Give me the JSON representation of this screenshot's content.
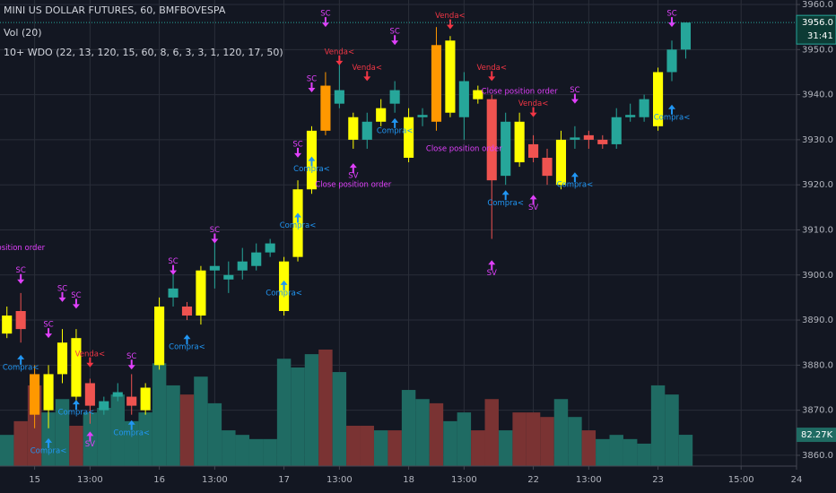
{
  "chart_data": {
    "type": "candlestick",
    "title": "MINI US DOLLAR FUTURES, 60, BMFBOVESPA",
    "subtitles": [
      "Vol (20)",
      "10+ WDO (22, 13, 120, 15, 60, 8, 6, 3, 3, 1, 120, 17, 50)"
    ],
    "x": [
      0,
      1,
      2,
      3,
      4,
      5,
      6,
      7,
      8,
      9,
      10,
      11,
      12,
      13,
      14,
      15,
      16,
      17,
      18,
      19,
      20,
      21,
      22,
      23,
      24,
      25,
      26,
      27,
      28,
      29,
      30,
      31,
      32,
      33,
      34,
      35,
      36,
      37,
      38,
      39,
      40,
      41,
      42,
      43,
      44,
      45,
      46,
      47,
      48,
      49
    ],
    "open": [
      3887,
      3892,
      3878,
      3870,
      3878,
      3873,
      3876,
      3870,
      3873,
      3873,
      3870,
      3880,
      3895,
      3893,
      3891,
      3901,
      3899,
      3901,
      3902,
      3905,
      3892,
      3904,
      3919,
      3942,
      3938,
      3935,
      3930,
      3934,
      3938,
      3935,
      3935,
      3951,
      3936,
      3935,
      3941,
      3939,
      3922,
      3934,
      3929,
      3926,
      3930,
      3930,
      3931,
      3930,
      3929,
      3935,
      3935,
      3933,
      3945,
      3950
    ],
    "high": [
      3893,
      3896,
      3880,
      3880,
      3888,
      3888,
      3877,
      3873,
      3876,
      3878,
      3876,
      3895,
      3902,
      3894,
      3902,
      3908,
      3903,
      3906,
      3907,
      3908,
      3904,
      3921,
      3933,
      3945,
      3948,
      3936,
      3936,
      3939,
      3943,
      3937,
      3937,
      3955,
      3953,
      3945,
      3942,
      3940,
      3936,
      3936,
      3931,
      3928,
      3932,
      3933,
      3932,
      3931,
      3937,
      3938,
      3940,
      3946,
      3952,
      3956
    ],
    "low": [
      3886,
      3885,
      3866,
      3866,
      3876,
      3871,
      3867,
      3869,
      3872,
      3869,
      3869,
      3879,
      3893,
      3890,
      3889,
      3897,
      3896,
      3899,
      3901,
      3904,
      3891,
      3903,
      3918,
      3931,
      3937,
      3928,
      3928,
      3933,
      3936,
      3925,
      3933,
      3932,
      3935,
      3930,
      3938,
      3908,
      3920,
      3924,
      3925,
      3920,
      3919,
      3928,
      3928,
      3928,
      3928,
      3934,
      3934,
      3932,
      3943,
      3948
    ],
    "close": [
      3891,
      3888,
      3869,
      3878,
      3885,
      3886,
      3871,
      3872,
      3874,
      3871,
      3875,
      3893,
      3897,
      3891,
      3901,
      3902,
      3900,
      3903,
      3905,
      3907,
      3903,
      3919,
      3932,
      3932,
      3941,
      3930,
      3934,
      3937,
      3941,
      3926,
      3935.5,
      3934,
      3952,
      3943,
      3939,
      3921,
      3934,
      3925,
      3926,
      3922,
      3920,
      3930.5,
      3930,
      3929,
      3935,
      3935.5,
      3939,
      3945,
      3950,
      3956
    ],
    "colors": [
      "#ffff00",
      "#ef5350",
      "#ff9800",
      "#ffff00",
      "#ffff00",
      "#ffff00",
      "#ef5350",
      "#26a69a",
      "#26a69a",
      "#ef5350",
      "#ffff00",
      "#ffff00",
      "#26a69a",
      "#ef5350",
      "#ffff00",
      "#26a69a",
      "#26a69a",
      "#26a69a",
      "#26a69a",
      "#26a69a",
      "#ffff00",
      "#ffff00",
      "#ffff00",
      "#ff9800",
      "#26a69a",
      "#ffff00",
      "#26a69a",
      "#ffff00",
      "#26a69a",
      "#ffff00",
      "#26a69a",
      "#ff9800",
      "#ffff00",
      "#26a69a",
      "#ffff00",
      "#ef5350",
      "#26a69a",
      "#ffff00",
      "#ef5350",
      "#ef5350",
      "#ffff00",
      "#26a69a",
      "#ef5350",
      "#ef5350",
      "#26a69a",
      "#26a69a",
      "#26a69a",
      "#ffff00",
      "#26a69a",
      "#26a69a"
    ],
    "volume": {
      "values": [
        82,
        118,
        212,
        141,
        176,
        106,
        141,
        153,
        188,
        118,
        141,
        270,
        212,
        188,
        235,
        165,
        94,
        82,
        71,
        71,
        282,
        259,
        294,
        306,
        247,
        106,
        106,
        94,
        94,
        200,
        176,
        165,
        118,
        141,
        94,
        176,
        94,
        141,
        141,
        129,
        176,
        129,
        94,
        71,
        82,
        71,
        59,
        212,
        188,
        82.27
      ],
      "colors": [
        "#1f6b63",
        "#7a3333",
        "#7a3333",
        "#1f6b63",
        "#1f6b63",
        "#7a3333",
        "#1f6b63",
        "#1f6b63",
        "#1f6b63",
        "#1f6b63",
        "#1f6b63",
        "#1f6b63",
        "#1f6b63",
        "#7a3333",
        "#1f6b63",
        "#1f6b63",
        "#1f6b63",
        "#1f6b63",
        "#1f6b63",
        "#1f6b63",
        "#1f6b63",
        "#1f6b63",
        "#1f6b63",
        "#7a3333",
        "#1f6b63",
        "#7a3333",
        "#7a3333",
        "#1f6b63",
        "#7a3333",
        "#1f6b63",
        "#1f6b63",
        "#7a3333",
        "#1f6b63",
        "#1f6b63",
        "#7a3333",
        "#7a3333",
        "#1f6b63",
        "#7a3333",
        "#7a3333",
        "#7a3333",
        "#1f6b63",
        "#1f6b63",
        "#7a3333",
        "#1f6b63",
        "#1f6b63",
        "#1f6b63",
        "#1f6b63",
        "#1f6b63",
        "#1f6b63",
        "#1f6b63"
      ],
      "ylim": [
        0,
        1224
      ],
      "last_label": "82.27K"
    },
    "xlim": [
      -0.5,
      57
    ],
    "xticks": [
      {
        "value": 2,
        "label": "15"
      },
      {
        "value": 6,
        "label": "13:00"
      },
      {
        "value": 11,
        "label": "16"
      },
      {
        "value": 15,
        "label": "13:00"
      },
      {
        "value": 20,
        "label": "17"
      },
      {
        "value": 24,
        "label": "13:00"
      },
      {
        "value": 29,
        "label": "18"
      },
      {
        "value": 33,
        "label": "13:00"
      },
      {
        "value": 38,
        "label": "22"
      },
      {
        "value": 42,
        "label": "13:00"
      },
      {
        "value": 47,
        "label": "23"
      },
      {
        "value": 53,
        "label": "15:00"
      },
      {
        "value": 57,
        "label": "24"
      }
    ],
    "ylim": [
      3857.6,
      3961
    ],
    "yticks": [
      {
        "value": 3860,
        "label": "3860.0"
      },
      {
        "value": 3870,
        "label": "3870.0"
      },
      {
        "value": 3880,
        "label": "3880.0"
      },
      {
        "value": 3890,
        "label": "3890.0"
      },
      {
        "value": 3900,
        "label": "3900.0"
      },
      {
        "value": 3910,
        "label": "3910.0"
      },
      {
        "value": 3920,
        "label": "3920.0"
      },
      {
        "value": 3930,
        "label": "3930.0"
      },
      {
        "value": 3940,
        "label": "3940.0"
      },
      {
        "value": 3950,
        "label": "3950.0"
      },
      {
        "value": 3960,
        "label": "3960.0"
      }
    ],
    "grid": true,
    "last_price": {
      "value": 3956,
      "label": "3956.0"
    },
    "countdown": "31:41",
    "annotations": [
      {
        "text": "Close position order",
        "x": 0,
        "y": 3906,
        "color": "#e040fb",
        "dir": "none"
      },
      {
        "text": "SC",
        "x": 1,
        "y": 3901,
        "color": "#e040fb",
        "dir": "down"
      },
      {
        "text": "SC",
        "x": 3,
        "y": 3889,
        "color": "#e040fb",
        "dir": "down"
      },
      {
        "text": "SC",
        "x": 4,
        "y": 3897,
        "color": "#e040fb",
        "dir": "down"
      },
      {
        "text": "SC",
        "x": 5,
        "y": 3895.5,
        "color": "#e040fb",
        "dir": "down"
      },
      {
        "text": "SC",
        "x": 9,
        "y": 3882,
        "color": "#e040fb",
        "dir": "down"
      },
      {
        "text": "SC",
        "x": 12,
        "y": 3903,
        "color": "#e040fb",
        "dir": "down"
      },
      {
        "text": "SC",
        "x": 15,
        "y": 3910,
        "color": "#e040fb",
        "dir": "down"
      },
      {
        "text": "SC",
        "x": 21,
        "y": 3929,
        "color": "#e040fb",
        "dir": "down"
      },
      {
        "text": "SC",
        "x": 22,
        "y": 3943.5,
        "color": "#e040fb",
        "dir": "down"
      },
      {
        "text": "SC",
        "x": 23,
        "y": 3958,
        "color": "#e040fb",
        "dir": "down"
      },
      {
        "text": "SC",
        "x": 28,
        "y": 3954,
        "color": "#e040fb",
        "dir": "down"
      },
      {
        "text": "SC",
        "x": 41,
        "y": 3941,
        "color": "#e040fb",
        "dir": "down"
      },
      {
        "text": "SC",
        "x": 48,
        "y": 3958,
        "color": "#e040fb",
        "dir": "down"
      },
      {
        "text": "Compra<",
        "x": 1,
        "y": 3879.5,
        "color": "#2196f3",
        "dir": "up"
      },
      {
        "text": "Compra<",
        "x": 3,
        "y": 3861,
        "color": "#2196f3",
        "dir": "up"
      },
      {
        "text": "Compra<",
        "x": 5,
        "y": 3869.5,
        "color": "#2196f3",
        "dir": "up"
      },
      {
        "text": "Compra<",
        "x": 9,
        "y": 3865,
        "color": "#2196f3",
        "dir": "up"
      },
      {
        "text": "Compra<",
        "x": 13,
        "y": 3884,
        "color": "#2196f3",
        "dir": "up"
      },
      {
        "text": "Compra<",
        "x": 20,
        "y": 3896,
        "color": "#2196f3",
        "dir": "up"
      },
      {
        "text": "Compra<",
        "x": 21,
        "y": 3911,
        "color": "#2196f3",
        "dir": "up"
      },
      {
        "text": "Compra<",
        "x": 22,
        "y": 3923.5,
        "color": "#2196f3",
        "dir": "up"
      },
      {
        "text": "Compra<",
        "x": 28,
        "y": 3932,
        "color": "#2196f3",
        "dir": "up"
      },
      {
        "text": "Compra<",
        "x": 36,
        "y": 3916,
        "color": "#2196f3",
        "dir": "up"
      },
      {
        "text": "Compra<",
        "x": 41,
        "y": 3920,
        "color": "#2196f3",
        "dir": "up"
      },
      {
        "text": "Compra<",
        "x": 48,
        "y": 3935,
        "color": "#2196f3",
        "dir": "up"
      },
      {
        "text": "Venda<",
        "x": 6,
        "y": 3882.5,
        "color": "#f23645",
        "dir": "down"
      },
      {
        "text": "Venda<",
        "x": 24,
        "y": 3949.5,
        "color": "#f23645",
        "dir": "down"
      },
      {
        "text": "Venda<",
        "x": 26,
        "y": 3946,
        "color": "#f23645",
        "dir": "down"
      },
      {
        "text": "Venda<",
        "x": 32,
        "y": 3957.5,
        "color": "#f23645",
        "dir": "down"
      },
      {
        "text": "Venda<",
        "x": 35,
        "y": 3946,
        "color": "#f23645",
        "dir": "down"
      },
      {
        "text": "Venda<",
        "x": 38,
        "y": 3938,
        "color": "#f23645",
        "dir": "down"
      },
      {
        "text": "SV",
        "x": 6,
        "y": 3862.5,
        "color": "#e040fb",
        "dir": "up"
      },
      {
        "text": "SV",
        "x": 25,
        "y": 3922,
        "color": "#e040fb",
        "dir": "up"
      },
      {
        "text": "SV",
        "x": 35,
        "y": 3900.5,
        "color": "#e040fb",
        "dir": "up"
      },
      {
        "text": "SV",
        "x": 38,
        "y": 3915,
        "color": "#e040fb",
        "dir": "up"
      },
      {
        "text": "Close position order",
        "x": 25,
        "y": 3920,
        "color": "#e040fb",
        "dir": "none"
      },
      {
        "text": "Close position order",
        "x": 33,
        "y": 3928,
        "color": "#e040fb",
        "dir": "none"
      },
      {
        "text": "Close position order",
        "x": 37,
        "y": 3940.7,
        "color": "#e040fb",
        "dir": "none"
      }
    ]
  }
}
